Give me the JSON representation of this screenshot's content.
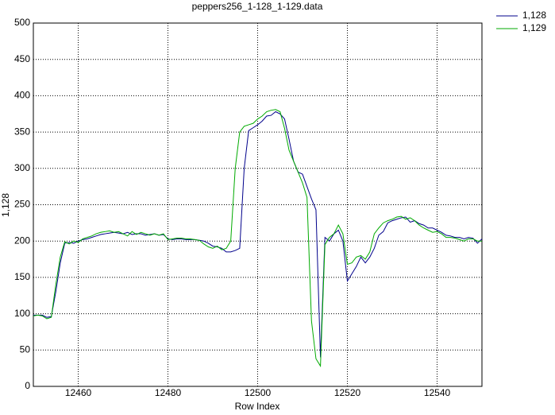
{
  "chart_data": {
    "type": "line",
    "title": "peppers256_1-128_1-129.data",
    "x_label": "Row Index",
    "y_label": "1,128",
    "x": [
      12450,
      12451,
      12452,
      12453,
      12454,
      12455,
      12456,
      12457,
      12458,
      12459,
      12460,
      12461,
      12462,
      12463,
      12464,
      12465,
      12466,
      12467,
      12468,
      12469,
      12470,
      12471,
      12472,
      12473,
      12474,
      12475,
      12476,
      12477,
      12478,
      12479,
      12480,
      12481,
      12482,
      12483,
      12484,
      12485,
      12486,
      12487,
      12488,
      12489,
      12490,
      12491,
      12492,
      12493,
      12494,
      12495,
      12496,
      12497,
      12498,
      12499,
      12500,
      12501,
      12502,
      12503,
      12504,
      12505,
      12506,
      12507,
      12508,
      12509,
      12510,
      12511,
      12512,
      12513,
      12514,
      12515,
      12516,
      12517,
      12518,
      12519,
      12520,
      12521,
      12522,
      12523,
      12524,
      12525,
      12526,
      12527,
      12528,
      12529,
      12530,
      12531,
      12532,
      12533,
      12534,
      12535,
      12536,
      12537,
      12538,
      12539,
      12540,
      12541,
      12542,
      12543,
      12544,
      12545,
      12546,
      12547,
      12548,
      12549,
      12550
    ],
    "series": [
      {
        "name": "1,128",
        "color": "#00008b",
        "values": [
          98,
          98,
          98,
          95,
          96,
          130,
          170,
          197,
          198,
          197,
          200,
          202,
          203,
          205,
          207,
          209,
          210,
          211,
          212,
          211,
          210,
          212,
          209,
          210,
          210,
          208,
          209,
          210,
          208,
          209,
          203,
          202,
          203,
          203,
          202,
          202,
          202,
          201,
          200,
          197,
          193,
          192,
          190,
          185,
          185,
          187,
          190,
          300,
          352,
          356,
          360,
          365,
          372,
          373,
          378,
          375,
          368,
          340,
          310,
          295,
          292,
          275,
          258,
          243,
          40,
          205,
          200,
          210,
          215,
          200,
          145,
          155,
          165,
          178,
          170,
          178,
          190,
          208,
          213,
          225,
          228,
          230,
          232,
          233,
          226,
          228,
          224,
          222,
          218,
          218,
          215,
          212,
          208,
          207,
          205,
          205,
          203,
          205,
          204,
          197,
          203
        ]
      },
      {
        "name": "1,129",
        "color": "#00aa00",
        "values": [
          97,
          98,
          97,
          93,
          95,
          140,
          178,
          199,
          196,
          200,
          198,
          203,
          205,
          207,
          210,
          212,
          213,
          214,
          212,
          213,
          210,
          207,
          213,
          209,
          212,
          210,
          208,
          210,
          208,
          210,
          202,
          203,
          204,
          204,
          203,
          203,
          202,
          201,
          196,
          192,
          190,
          193,
          188,
          190,
          200,
          300,
          350,
          358,
          360,
          362,
          368,
          372,
          378,
          380,
          381,
          378,
          355,
          325,
          310,
          295,
          280,
          260,
          90,
          38,
          28,
          195,
          205,
          210,
          222,
          210,
          168,
          170,
          178,
          180,
          175,
          185,
          210,
          218,
          225,
          228,
          230,
          233,
          234,
          230,
          232,
          228,
          222,
          218,
          215,
          212,
          213,
          210,
          205,
          205,
          204,
          202,
          200,
          203,
          203,
          200,
          200
        ]
      }
    ],
    "xlim": [
      12450,
      12550
    ],
    "xticks": [
      12460,
      12480,
      12500,
      12520,
      12540
    ],
    "ylim": [
      0,
      500
    ],
    "yticks": [
      0,
      50,
      100,
      150,
      200,
      250,
      300,
      350,
      400,
      450,
      500
    ],
    "grid": true,
    "legend": "outside-top-right"
  }
}
